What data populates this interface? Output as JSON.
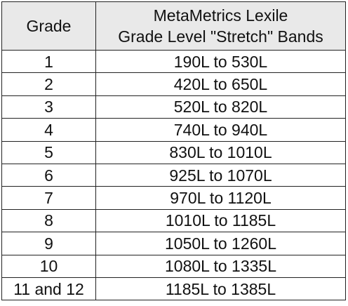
{
  "table": {
    "headers": {
      "grade": "Grade",
      "band_line1": "MetaMetrics Lexile",
      "band_line2": "Grade Level \"Stretch\" Bands"
    },
    "rows": [
      {
        "grade": "1",
        "band": "190L to 530L"
      },
      {
        "grade": "2",
        "band": "420L to 650L"
      },
      {
        "grade": "3",
        "band": "520L to 820L"
      },
      {
        "grade": "4",
        "band": "740L to 940L"
      },
      {
        "grade": "5",
        "band": "830L to 1010L"
      },
      {
        "grade": "6",
        "band": "925L to 1070L"
      },
      {
        "grade": "7",
        "band": "970L to 1120L"
      },
      {
        "grade": "8",
        "band": "1010L to 1185L"
      },
      {
        "grade": "9",
        "band": "1050L to 1260L"
      },
      {
        "grade": "10",
        "band": "1080L to 1335L"
      },
      {
        "grade": "11 and 12",
        "band": "1185L to 1385L"
      }
    ]
  }
}
